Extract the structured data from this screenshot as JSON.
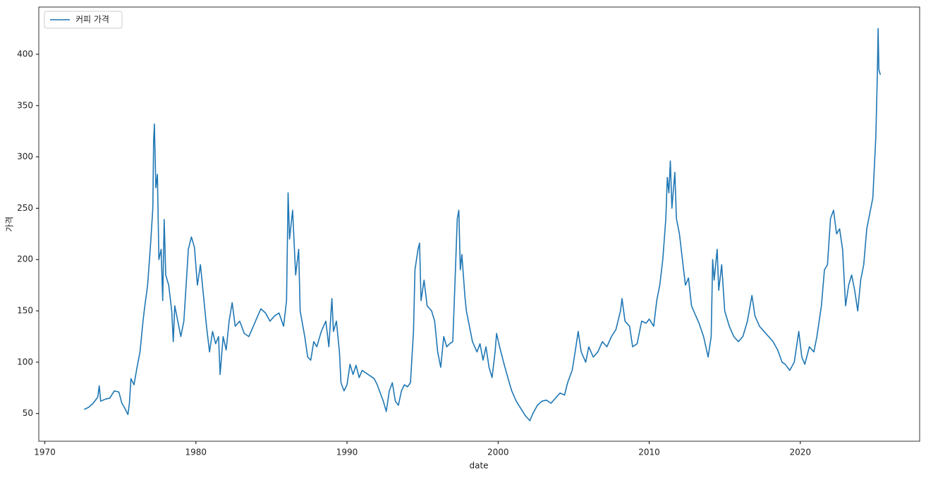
{
  "chart_data": {
    "type": "line",
    "x_label": "date",
    "y_label": "가격",
    "legend": "upper left",
    "grid": false,
    "xlim": [
      1969.6,
      2027.9
    ],
    "ylim": [
      23,
      446
    ],
    "xticks": [
      1970,
      1980,
      1990,
      2000,
      2010,
      2020
    ],
    "yticks": [
      50,
      100,
      150,
      200,
      250,
      300,
      350,
      400
    ],
    "x": [
      1972.6,
      1972.9,
      1973.2,
      1973.5,
      1973.6,
      1973.7,
      1974.0,
      1974.3,
      1974.6,
      1974.9,
      1975.1,
      1975.3,
      1975.5,
      1975.6,
      1975.7,
      1975.9,
      1976.1,
      1976.3,
      1976.5,
      1976.6,
      1976.8,
      1977.0,
      1977.15,
      1977.2,
      1977.25,
      1977.35,
      1977.45,
      1977.55,
      1977.7,
      1977.8,
      1977.9,
      1978.0,
      1978.2,
      1978.4,
      1978.5,
      1978.6,
      1978.8,
      1979.0,
      1979.2,
      1979.5,
      1979.7,
      1979.9,
      1980.1,
      1980.3,
      1980.5,
      1980.7,
      1980.9,
      1981.1,
      1981.3,
      1981.5,
      1981.6,
      1981.8,
      1982.0,
      1982.2,
      1982.4,
      1982.6,
      1982.9,
      1983.2,
      1983.5,
      1983.8,
      1984.0,
      1984.3,
      1984.6,
      1984.9,
      1985.2,
      1985.5,
      1985.8,
      1986.0,
      1986.1,
      1986.2,
      1986.4,
      1986.6,
      1986.8,
      1986.9,
      1987.2,
      1987.4,
      1987.6,
      1987.8,
      1988.0,
      1988.3,
      1988.6,
      1988.8,
      1989.0,
      1989.1,
      1989.3,
      1989.5,
      1989.6,
      1989.8,
      1990.0,
      1990.2,
      1990.4,
      1990.6,
      1990.8,
      1991.0,
      1991.4,
      1991.8,
      1992.0,
      1992.2,
      1992.4,
      1992.6,
      1992.8,
      1993.0,
      1993.2,
      1993.4,
      1993.6,
      1993.8,
      1994.0,
      1994.2,
      1994.4,
      1994.5,
      1994.7,
      1994.8,
      1994.9,
      1995.1,
      1995.3,
      1995.6,
      1995.8,
      1996.0,
      1996.2,
      1996.4,
      1996.6,
      1996.8,
      1997.0,
      1997.1,
      1997.2,
      1997.3,
      1997.4,
      1997.5,
      1997.6,
      1997.8,
      1997.9,
      1998.1,
      1998.3,
      1998.6,
      1998.8,
      1999.0,
      1999.2,
      1999.4,
      1999.6,
      1999.8,
      1999.9,
      2000.1,
      2000.4,
      2000.7,
      2000.9,
      2001.2,
      2001.5,
      2001.8,
      2002.1,
      2002.3,
      2002.6,
      2002.9,
      2003.2,
      2003.5,
      2003.8,
      2004.1,
      2004.4,
      2004.6,
      2004.9,
      2005.1,
      2005.3,
      2005.5,
      2005.8,
      2006.0,
      2006.3,
      2006.6,
      2006.9,
      2007.2,
      2007.5,
      2007.8,
      2008.1,
      2008.2,
      2008.4,
      2008.7,
      2008.9,
      2009.2,
      2009.5,
      2009.8,
      2010.0,
      2010.3,
      2010.5,
      2010.7,
      2010.9,
      2011.1,
      2011.2,
      2011.3,
      2011.4,
      2011.5,
      2011.7,
      2011.8,
      2012.0,
      2012.2,
      2012.4,
      2012.6,
      2012.8,
      2013.0,
      2013.3,
      2013.6,
      2013.9,
      2014.1,
      2014.2,
      2014.3,
      2014.5,
      2014.6,
      2014.8,
      2015.0,
      2015.3,
      2015.6,
      2015.9,
      2016.2,
      2016.5,
      2016.8,
      2017.0,
      2017.3,
      2017.6,
      2017.9,
      2018.2,
      2018.5,
      2018.8,
      2019.0,
      2019.3,
      2019.6,
      2019.9,
      2020.1,
      2020.3,
      2020.6,
      2020.9,
      2021.1,
      2021.4,
      2021.6,
      2021.8,
      2022.0,
      2022.2,
      2022.4,
      2022.6,
      2022.8,
      2023.0,
      2023.2,
      2023.4,
      2023.6,
      2023.8,
      2024.0,
      2024.2,
      2024.4,
      2024.6,
      2024.8,
      2025.0,
      2025.1,
      2025.15,
      2025.2,
      2025.3
    ],
    "series": [
      {
        "name": "커피 가격",
        "color": "#1f77b4",
        "values": [
          54,
          56,
          60,
          66,
          77,
          62,
          64,
          65,
          72,
          71,
          60,
          55,
          49,
          60,
          84,
          78,
          95,
          110,
          140,
          153,
          175,
          215,
          250,
          315,
          332,
          270,
          283,
          200,
          210,
          160,
          239,
          185,
          175,
          150,
          120,
          155,
          140,
          125,
          140,
          210,
          222,
          212,
          175,
          195,
          165,
          135,
          110,
          130,
          118,
          125,
          88,
          125,
          112,
          140,
          158,
          135,
          140,
          128,
          125,
          135,
          142,
          152,
          148,
          140,
          145,
          148,
          135,
          160,
          265,
          220,
          248,
          185,
          210,
          150,
          125,
          105,
          102,
          120,
          115,
          130,
          140,
          115,
          162,
          130,
          140,
          110,
          80,
          72,
          78,
          98,
          88,
          97,
          85,
          92,
          88,
          84,
          78,
          70,
          62,
          52,
          72,
          80,
          62,
          58,
          72,
          78,
          76,
          80,
          130,
          190,
          210,
          216,
          160,
          180,
          155,
          150,
          140,
          110,
          95,
          125,
          115,
          118,
          120,
          160,
          200,
          240,
          248,
          190,
          205,
          165,
          150,
          135,
          120,
          110,
          118,
          102,
          115,
          95,
          85,
          110,
          128,
          115,
          98,
          82,
          72,
          62,
          55,
          48,
          43,
          50,
          58,
          62,
          63,
          60,
          65,
          70,
          68,
          80,
          92,
          110,
          130,
          110,
          100,
          115,
          105,
          110,
          120,
          115,
          125,
          132,
          150,
          162,
          140,
          135,
          115,
          118,
          140,
          138,
          142,
          135,
          160,
          175,
          200,
          240,
          280,
          265,
          296,
          250,
          285,
          240,
          225,
          200,
          175,
          182,
          155,
          148,
          138,
          125,
          105,
          125,
          200,
          180,
          210,
          170,
          195,
          150,
          135,
          125,
          120,
          125,
          140,
          165,
          145,
          135,
          130,
          125,
          120,
          112,
          100,
          98,
          92,
          100,
          130,
          105,
          98,
          115,
          110,
          125,
          155,
          190,
          195,
          240,
          248,
          225,
          230,
          210,
          155,
          175,
          185,
          170,
          150,
          180,
          195,
          230,
          245,
          260,
          320,
          380,
          425,
          385,
          380
        ]
      }
    ]
  }
}
